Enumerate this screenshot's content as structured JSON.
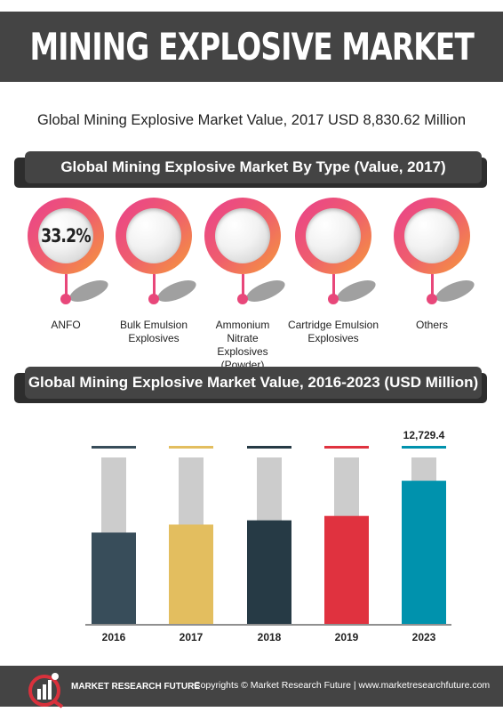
{
  "header": {
    "title": "MINING EXPLOSIVE MARKET"
  },
  "summary": {
    "text": "Global Mining Explosive Market Value, 2017 USD 8,830.62 Million"
  },
  "section_type": {
    "title": "Global Mining Explosive Market By Type (Value, 2017)"
  },
  "types": [
    {
      "label": "ANFO",
      "share": "33.2%"
    },
    {
      "label": "Bulk Emulsion Explosives",
      "share": ""
    },
    {
      "label": "Ammonium Nitrate Explosives (Powder)",
      "share": ""
    },
    {
      "label": "Cartridge Emulsion Explosives",
      "share": ""
    },
    {
      "label": "Others",
      "share": ""
    }
  ],
  "section_value": {
    "title": "Global Mining Explosive Market Value, 2016-2023 (USD Million)"
  },
  "chart_data": {
    "type": "bar",
    "categories": [
      "2016",
      "2017",
      "2018",
      "2019",
      "2023"
    ],
    "values": [
      8120,
      8830.62,
      9210,
      9600,
      12729.4
    ],
    "value_labels": [
      "",
      "",
      "",
      "",
      "12,729.4"
    ],
    "colors": [
      "#384d5a",
      "#e3be5f",
      "#263a45",
      "#e0323f",
      "#0092ad"
    ],
    "background_color": "#cccccc",
    "ylim": [
      0,
      14800
    ],
    "title": "Global Mining Explosive Market Value, 2016-2023 (USD Million)",
    "xlabel": "",
    "ylabel": "",
    "grid": false,
    "legend": "none"
  },
  "footer": {
    "brand": "MARKET RESEARCH FUTURE",
    "copyright": "Copyrights © Market Research Future | www.marketresearchfuture.com",
    "logo_icon": "mrf-logo-icon"
  }
}
